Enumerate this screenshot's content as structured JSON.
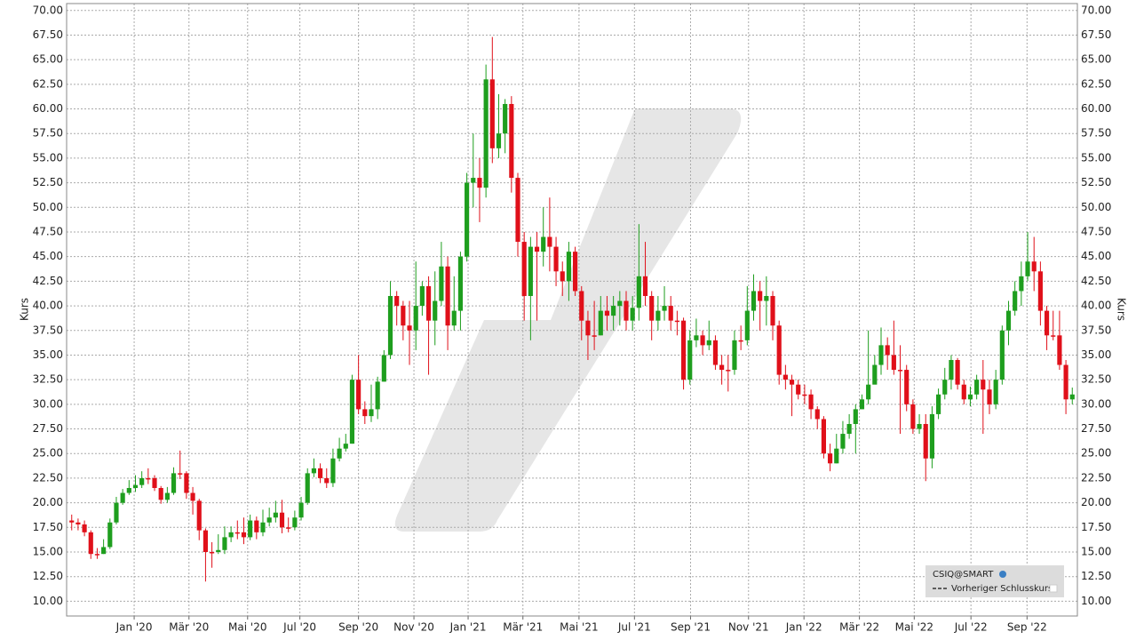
{
  "chart_data": {
    "type": "candlestick",
    "y_label": "Kurs",
    "legend": [
      "CSIQ@SMART",
      "Vorheriger Schlusskurs"
    ],
    "up_color": "#1e9e1e",
    "down_color": "#e0101a",
    "grid": true,
    "xlim": [
      -0.8,
      157.8
    ],
    "ylim": [
      8.5,
      70.7
    ],
    "xticks": [
      {
        "value": 9.8,
        "label": "Jan '20"
      },
      {
        "value": 18.4,
        "label": "Mär '20"
      },
      {
        "value": 27.6,
        "label": "Mai '20"
      },
      {
        "value": 35.8,
        "label": "Jul '20"
      },
      {
        "value": 45.0,
        "label": "Sep '20"
      },
      {
        "value": 53.7,
        "label": "Nov '20"
      },
      {
        "value": 62.2,
        "label": "Jan '21"
      },
      {
        "value": 70.8,
        "label": "Mär '21"
      },
      {
        "value": 79.6,
        "label": "Mai '21"
      },
      {
        "value": 88.3,
        "label": "Jul '21"
      },
      {
        "value": 97.1,
        "label": "Sep '21"
      },
      {
        "value": 106.2,
        "label": "Nov '21"
      },
      {
        "value": 114.9,
        "label": "Jan '22"
      },
      {
        "value": 123.6,
        "label": "Mär '22"
      },
      {
        "value": 132.2,
        "label": "Mai '22"
      },
      {
        "value": 141.1,
        "label": "Jul '22"
      },
      {
        "value": 149.9,
        "label": "Sep '22"
      }
    ],
    "yticks": [
      {
        "value": 10,
        "label": "10.00"
      },
      {
        "value": 12.5,
        "label": "12.50"
      },
      {
        "value": 15,
        "label": "15.00"
      },
      {
        "value": 17.5,
        "label": "17.50"
      },
      {
        "value": 20,
        "label": "20.00"
      },
      {
        "value": 22.5,
        "label": "22.50"
      },
      {
        "value": 25,
        "label": "25.00"
      },
      {
        "value": 27.5,
        "label": "27.50"
      },
      {
        "value": 30,
        "label": "30.00"
      },
      {
        "value": 32.5,
        "label": "32.50"
      },
      {
        "value": 35,
        "label": "35.00"
      },
      {
        "value": 37.5,
        "label": "37.50"
      },
      {
        "value": 40,
        "label": "40.00"
      },
      {
        "value": 42.5,
        "label": "42.50"
      },
      {
        "value": 45,
        "label": "45.00"
      },
      {
        "value": 47.5,
        "label": "47.50"
      },
      {
        "value": 50,
        "label": "50.00"
      },
      {
        "value": 52.5,
        "label": "52.50"
      },
      {
        "value": 55,
        "label": "55.00"
      },
      {
        "value": 57.5,
        "label": "57.50"
      },
      {
        "value": 60,
        "label": "60.00"
      },
      {
        "value": 62.5,
        "label": "62.50"
      },
      {
        "value": 65,
        "label": "65.00"
      },
      {
        "value": 67.5,
        "label": "67.50"
      },
      {
        "value": 70,
        "label": "70.00"
      }
    ],
    "open": [
      18.2,
      18,
      17.8,
      17,
      14.8,
      14.8,
      15.5,
      18,
      20,
      21,
      21.5,
      21.8,
      22.5,
      22.5,
      21.5,
      20.3,
      21,
      23,
      23,
      21,
      20.2,
      17.2,
      15,
      15,
      15.2,
      16.5,
      17,
      17,
      16.5,
      18.2,
      17,
      18,
      18.5,
      19,
      17.5,
      17.5,
      18.5,
      20,
      23,
      23.5,
      22.5,
      22,
      24.5,
      25.5,
      26,
      32.5,
      29.5,
      28.8,
      29.5,
      32.3,
      35,
      41,
      40,
      38,
      37.5,
      40,
      42,
      38.5,
      40.5,
      44,
      38,
      39.5,
      45,
      52.5,
      53,
      52,
      63,
      56,
      57.5,
      60.5,
      53,
      46.5,
      41,
      46,
      45.5,
      47,
      46,
      43.5,
      42.5,
      45.5,
      41.5,
      38.5,
      37,
      37,
      39.5,
      39,
      40,
      40.5,
      38.5,
      39.8,
      43,
      41,
      38.5,
      39.5,
      40,
      38.5,
      38.5,
      32.5,
      36.5,
      37,
      36,
      36.5,
      34,
      33.5,
      33.5,
      36.5,
      36.5,
      39.5,
      41.5,
      40.5,
      41,
      38,
      33,
      32.5,
      32,
      31,
      31,
      29.5,
      28.5,
      25,
      24,
      25.5,
      27,
      28,
      29.5,
      30.5,
      32,
      34,
      36,
      35,
      33.5,
      33.5,
      30,
      27.5,
      28,
      24.5,
      29,
      31,
      32.5,
      34.5,
      32,
      30.5,
      31,
      32.5,
      31.5,
      30,
      32.5,
      37.5,
      39.5,
      41.5,
      43,
      44.5,
      43.5,
      39.5,
      37,
      37,
      34,
      30.5
    ],
    "high": [
      18.8,
      18.4,
      18.2,
      17.2,
      15.4,
      16.3,
      18.4,
      20.6,
      21.4,
      22.3,
      22.8,
      23.2,
      23.5,
      22.8,
      21.7,
      21.6,
      23.6,
      25.3,
      23.2,
      21.6,
      20.4,
      17.4,
      16,
      16.8,
      17.6,
      17.6,
      18.2,
      18.5,
      18.8,
      18.6,
      19.3,
      19.5,
      20.2,
      20.3,
      18.5,
      19.2,
      20.6,
      23.5,
      24.5,
      24,
      23.5,
      25.5,
      26.6,
      27,
      33,
      35,
      30.3,
      32,
      32.8,
      35.5,
      42.5,
      41.5,
      40.5,
      40.5,
      44.5,
      42.5,
      43,
      43.5,
      46.5,
      45,
      43,
      45.5,
      53.5,
      57.5,
      55,
      64.5,
      67.3,
      61.5,
      61,
      61.3,
      53.5,
      47.5,
      47,
      47.5,
      50,
      51,
      47,
      44.5,
      46.5,
      46,
      42,
      39.5,
      40.5,
      41,
      41,
      41,
      41.5,
      41.5,
      41,
      48.3,
      46.5,
      41.5,
      41,
      42,
      41,
      39.5,
      38.8,
      37.5,
      38.7,
      37.5,
      38.5,
      37,
      35,
      35,
      37.5,
      38,
      42,
      43.2,
      42.5,
      43,
      41.5,
      38.5,
      34,
      33,
      32.5,
      32,
      31.5,
      29.8,
      28.8,
      26,
      27,
      28.3,
      29,
      30,
      31,
      37.5,
      35,
      37.8,
      36.8,
      38.5,
      36,
      34,
      30.5,
      29,
      29,
      29.8,
      31.6,
      33.7,
      35,
      34.7,
      32.5,
      31.8,
      33,
      34.5,
      32.5,
      33.5,
      38,
      40.5,
      42.5,
      44.5,
      47.5,
      47,
      44.5,
      40,
      39.5,
      39.5,
      34.5,
      31.7
    ],
    "low": [
      17.2,
      17.2,
      16.6,
      14.3,
      14.3,
      14.8,
      15.3,
      17.8,
      19.8,
      20.8,
      21.1,
      21.5,
      21.9,
      21.2,
      19.9,
      20,
      20.8,
      22.4,
      20.4,
      18.8,
      16.2,
      12,
      13.4,
      14.8,
      14.8,
      16,
      16.3,
      15.8,
      16.2,
      16.3,
      16.6,
      17.6,
      18,
      16.9,
      17,
      17.2,
      18.2,
      19.8,
      22.6,
      22,
      21.5,
      21.6,
      24.2,
      25.2,
      26,
      29,
      28,
      28.2,
      28.5,
      32.3,
      34.6,
      38,
      36.5,
      34,
      35.5,
      39,
      33,
      36,
      40,
      35.5,
      37.5,
      37.5,
      44.5,
      50,
      48.5,
      51,
      54.5,
      55,
      55.5,
      51.5,
      45,
      38.5,
      36.5,
      38.5,
      44,
      43.5,
      42,
      41,
      40.5,
      41,
      36.5,
      34.5,
      35.5,
      37,
      37.5,
      37.5,
      38,
      37.5,
      37.5,
      38.5,
      40,
      36.5,
      37.5,
      38.5,
      37.5,
      37,
      31.5,
      32,
      35.8,
      35,
      35.5,
      33.5,
      32,
      31.3,
      33,
      35.5,
      36,
      38.5,
      37.5,
      38,
      36.5,
      32,
      31.5,
      28.8,
      30.5,
      30,
      28.5,
      27.5,
      24.5,
      23.2,
      24,
      25,
      26.5,
      25,
      29.5,
      30,
      32.5,
      33,
      33.5,
      33,
      27,
      29.3,
      27,
      27,
      22.2,
      23.5,
      28.5,
      30.5,
      31.5,
      31.5,
      30,
      29.8,
      30.5,
      27,
      29,
      29.5,
      32,
      36,
      39,
      40,
      42.5,
      41.5,
      38,
      35.5,
      36.5,
      33.5,
      29,
      30
    ],
    "close": [
      18,
      17.8,
      17,
      14.8,
      14.8,
      15.5,
      18,
      20,
      21,
      21.5,
      21.8,
      22.5,
      22.5,
      21.5,
      20.3,
      21,
      23,
      23,
      21,
      20.2,
      17.2,
      15,
      15,
      15.2,
      16.5,
      17,
      17,
      16.5,
      18.2,
      17,
      18,
      18.5,
      19,
      17.5,
      17.5,
      18.5,
      20,
      23,
      23.5,
      22.5,
      22,
      24.5,
      25.5,
      26,
      32.5,
      29.5,
      28.8,
      29.5,
      32.3,
      35,
      41,
      40,
      38,
      37.5,
      40,
      42,
      38.5,
      40.5,
      44,
      38,
      39.5,
      45,
      52.5,
      53,
      52,
      63,
      56,
      57.5,
      60.5,
      53,
      46.5,
      41,
      46,
      45.5,
      47,
      46,
      43.5,
      42.5,
      45.5,
      41.5,
      38.5,
      37,
      37,
      39.5,
      39,
      40,
      40.5,
      38.5,
      39.8,
      43,
      41,
      38.5,
      39.5,
      40,
      38.5,
      38.5,
      32.5,
      36.5,
      37,
      36,
      36.5,
      34,
      33.5,
      33.5,
      36.5,
      36.5,
      39.5,
      41.5,
      40.5,
      41,
      38,
      33,
      32.5,
      32,
      31,
      31,
      29.5,
      28.5,
      25,
      24,
      25.5,
      27,
      28,
      29.5,
      30.5,
      32,
      34,
      36,
      35,
      33.5,
      33.5,
      30,
      27.5,
      28,
      24.5,
      29,
      31,
      32.5,
      34.5,
      32,
      30.5,
      31,
      32.5,
      31.5,
      30,
      32.5,
      37.5,
      39.5,
      41.5,
      43,
      44.5,
      43.5,
      39.5,
      37,
      37,
      34,
      30.5,
      31
    ]
  }
}
